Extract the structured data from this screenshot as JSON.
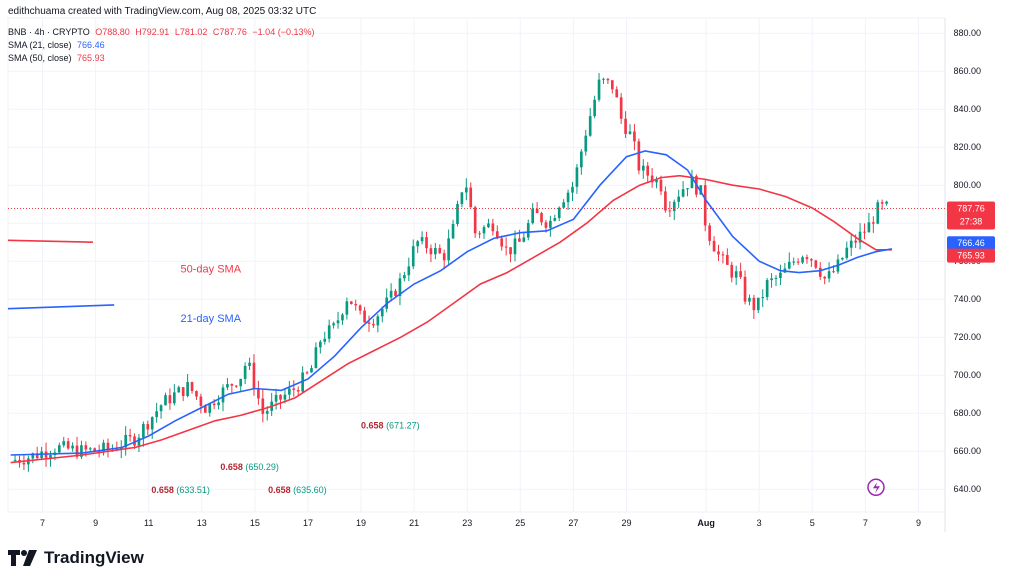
{
  "header": {
    "credit": "edithchuama created with TradingView.com, Aug 08, 2025 03:32 UTC",
    "symbol": "BNB · 4h · CRYPTO",
    "open": "O788.80",
    "high": "H792.91",
    "low": "L781.02",
    "close": "C787.76",
    "change": "−1.04 (−0.13%)",
    "sma21_label": "SMA (21, close)",
    "sma21_value": "766.46",
    "sma50_label": "SMA (50, close)",
    "sma50_value": "765.93"
  },
  "brand": "TradingView",
  "colors": {
    "up": "#089981",
    "down": "#f23645",
    "sma21": "#2962ff",
    "sma50": "#f23645"
  },
  "chart_data": {
    "type": "candlestick",
    "title": "BNB · 4h · CRYPTO",
    "ylim": [
      628,
      888
    ],
    "y_ticks": [
      640,
      660,
      680,
      700,
      720,
      740,
      760,
      780,
      800,
      820,
      840,
      860,
      880
    ],
    "x_ticks": [
      {
        "label": "7",
        "t": 6.5
      },
      {
        "label": "9",
        "t": 8.5
      },
      {
        "label": "11",
        "t": 10.5
      },
      {
        "label": "13",
        "t": 12.5
      },
      {
        "label": "15",
        "t": 14.5
      },
      {
        "label": "17",
        "t": 16.5
      },
      {
        "label": "19",
        "t": 18.5
      },
      {
        "label": "21",
        "t": 20.5
      },
      {
        "label": "23",
        "t": 22.5
      },
      {
        "label": "25",
        "t": 24.5
      },
      {
        "label": "27",
        "t": 26.5
      },
      {
        "label": "29",
        "t": 28.5
      },
      {
        "label": "Aug",
        "t": 31.5
      },
      {
        "label": "3",
        "t": 33.5
      },
      {
        "label": "5",
        "t": 35.5
      },
      {
        "label": "7",
        "t": 37.5
      },
      {
        "label": "9",
        "t": 39.5
      }
    ],
    "x_range": [
      5.2,
      40.5
    ],
    "price_path": [
      [
        5.3,
        655
      ],
      [
        6,
        657
      ],
      [
        7,
        662
      ],
      [
        8,
        660
      ],
      [
        9,
        661
      ],
      [
        10,
        667
      ],
      [
        11,
        685
      ],
      [
        11.5,
        690
      ],
      [
        12,
        694
      ],
      [
        12.7,
        682
      ],
      [
        13,
        688
      ],
      [
        14,
        700
      ],
      [
        14.2,
        708
      ],
      [
        14.8,
        680
      ],
      [
        15.5,
        688
      ],
      [
        16,
        693
      ],
      [
        16.6,
        702
      ],
      [
        17,
        720
      ],
      [
        17.5,
        725
      ],
      [
        18,
        742
      ],
      [
        18.5,
        730
      ],
      [
        19,
        730
      ],
      [
        19.6,
        740
      ],
      [
        20,
        750
      ],
      [
        20.6,
        770
      ],
      [
        21,
        768
      ],
      [
        21.6,
        762
      ],
      [
        22,
        778
      ],
      [
        22.4,
        805
      ],
      [
        22.8,
        775
      ],
      [
        23.5,
        780
      ],
      [
        24,
        765
      ],
      [
        24.5,
        770
      ],
      [
        25,
        785
      ],
      [
        25.6,
        780
      ],
      [
        26,
        792
      ],
      [
        26.5,
        800
      ],
      [
        27,
        830
      ],
      [
        27.5,
        855
      ],
      [
        28,
        852
      ],
      [
        28.3,
        835
      ],
      [
        28.7,
        825
      ],
      [
        29,
        808
      ],
      [
        29.4,
        805
      ],
      [
        29.8,
        800
      ],
      [
        30,
        788
      ],
      [
        30.4,
        795
      ],
      [
        30.9,
        803
      ],
      [
        31.3,
        796
      ],
      [
        31.5,
        778
      ],
      [
        32,
        762
      ],
      [
        32.4,
        755
      ],
      [
        32.7,
        752
      ],
      [
        33,
        740
      ],
      [
        33.4,
        735
      ],
      [
        33.8,
        748
      ],
      [
        34.3,
        752
      ],
      [
        34.8,
        760
      ],
      [
        35.2,
        765
      ],
      [
        35.6,
        760
      ],
      [
        36,
        750
      ],
      [
        36.4,
        756
      ],
      [
        36.8,
        766
      ],
      [
        37.2,
        772
      ],
      [
        37.6,
        778
      ],
      [
        38,
        788
      ],
      [
        38.4,
        788
      ]
    ],
    "sma21": [
      [
        5.3,
        658
      ],
      [
        8,
        659
      ],
      [
        9.5,
        662
      ],
      [
        10.5,
        668
      ],
      [
        11.5,
        676
      ],
      [
        12.5,
        683
      ],
      [
        13.5,
        690
      ],
      [
        14.5,
        693
      ],
      [
        15.5,
        692
      ],
      [
        16.5,
        698
      ],
      [
        17.5,
        710
      ],
      [
        18.5,
        725
      ],
      [
        19.5,
        738
      ],
      [
        20.5,
        748
      ],
      [
        21.5,
        755
      ],
      [
        22.5,
        765
      ],
      [
        23.5,
        772
      ],
      [
        24.5,
        775
      ],
      [
        25.5,
        776
      ],
      [
        26.5,
        782
      ],
      [
        27.5,
        800
      ],
      [
        28.5,
        815
      ],
      [
        29.2,
        818
      ],
      [
        30,
        816
      ],
      [
        30.8,
        808
      ],
      [
        31.5,
        792
      ],
      [
        32.5,
        773
      ],
      [
        33.5,
        760
      ],
      [
        34.3,
        755
      ],
      [
        35,
        754
      ],
      [
        35.8,
        755
      ],
      [
        36.5,
        758
      ],
      [
        37.2,
        762
      ],
      [
        37.9,
        765
      ],
      [
        38.5,
        766.5
      ]
    ],
    "sma50": [
      [
        5.3,
        654
      ],
      [
        8,
        658
      ],
      [
        10,
        662
      ],
      [
        11,
        666
      ],
      [
        12,
        671
      ],
      [
        13,
        676
      ],
      [
        14,
        679
      ],
      [
        15,
        683
      ],
      [
        16,
        688
      ],
      [
        17,
        697
      ],
      [
        18,
        706
      ],
      [
        19,
        713
      ],
      [
        20,
        720
      ],
      [
        21,
        728
      ],
      [
        22,
        738
      ],
      [
        23,
        748
      ],
      [
        24,
        754
      ],
      [
        25,
        762
      ],
      [
        26,
        770
      ],
      [
        27,
        780
      ],
      [
        28,
        792
      ],
      [
        29,
        800
      ],
      [
        29.8,
        804
      ],
      [
        30.5,
        805
      ],
      [
        31.5,
        803
      ],
      [
        32.5,
        800
      ],
      [
        33.5,
        798
      ],
      [
        34.5,
        794
      ],
      [
        35.5,
        788
      ],
      [
        36.3,
        781
      ],
      [
        37.2,
        772
      ],
      [
        37.9,
        766
      ],
      [
        38.5,
        766
      ]
    ],
    "last_price": {
      "value": 787.76,
      "label": "787.76",
      "countdown": "27:38"
    },
    "sma21_last": {
      "value": 766.46,
      "label": "766.46"
    },
    "sma50_last": {
      "value": 765.93,
      "label": "765.93"
    },
    "annotations": [
      {
        "text": "50-day SMA",
        "t": 11.7,
        "y": 754,
        "color": "#f23645"
      },
      {
        "text": "21-day SMA",
        "t": 11.7,
        "y": 728,
        "color": "#2962ff"
      },
      {
        "text": "0.658",
        "value": "(633.51)",
        "t": 10.6,
        "y": 638
      },
      {
        "text": "0.658",
        "value": "(650.29)",
        "t": 13.2,
        "y": 650
      },
      {
        "text": "0.658",
        "value": "(635.60)",
        "t": 15,
        "y": 638
      },
      {
        "text": "0.658",
        "value": "(671.27)",
        "t": 18.5,
        "y": 672
      }
    ],
    "legend_lines": [
      {
        "name": "sma50-sample",
        "color": "#f23645",
        "t0": 5.2,
        "t1": 8.4,
        "y0": 771,
        "y1": 770
      },
      {
        "name": "sma21-sample",
        "color": "#2962ff",
        "t0": 5.2,
        "t1": 9.2,
        "y0": 735,
        "y1": 737
      }
    ]
  }
}
